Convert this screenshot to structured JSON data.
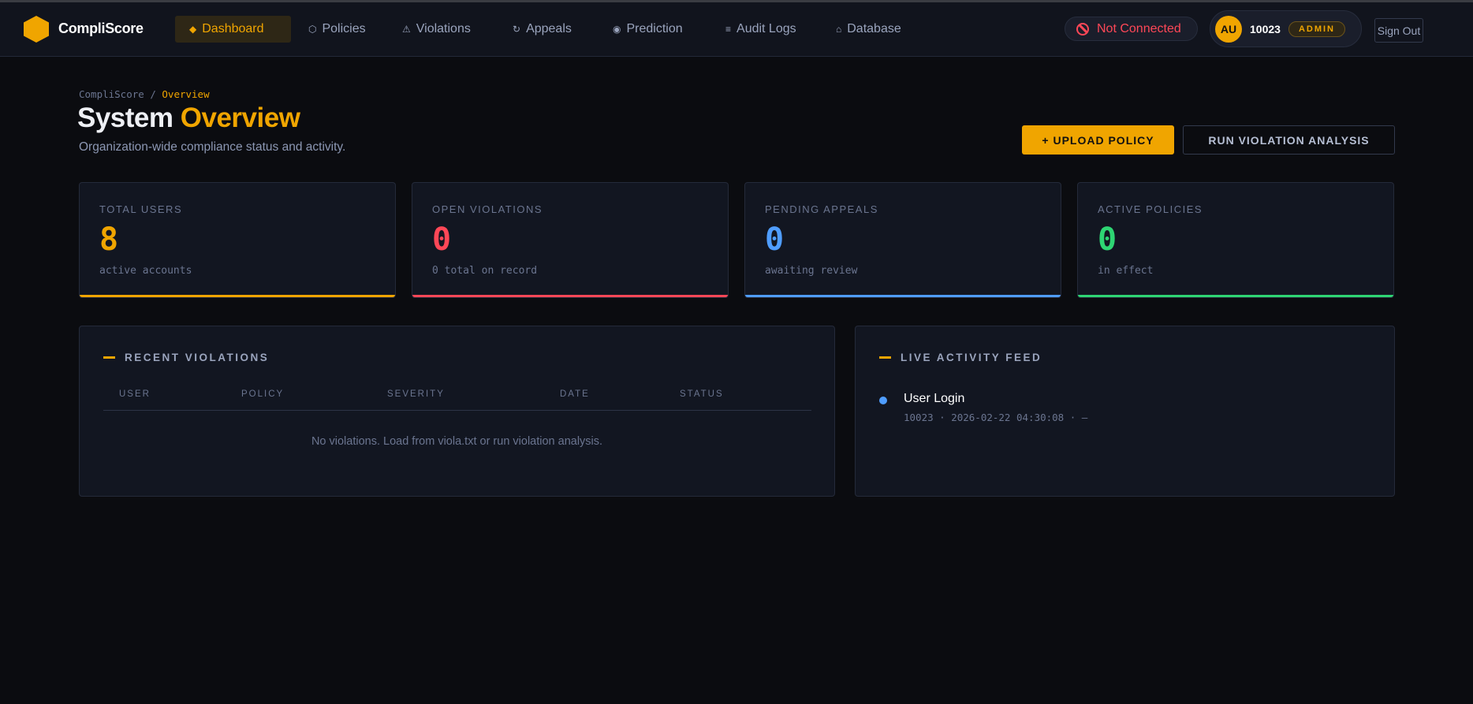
{
  "app": {
    "name": "CompliScore"
  },
  "nav": {
    "items": [
      {
        "label": "Dashboard",
        "icon": "diamond-icon",
        "active": true
      },
      {
        "label": "Policies",
        "icon": "hexagon-icon"
      },
      {
        "label": "Violations",
        "icon": "warning-icon"
      },
      {
        "label": "Appeals",
        "icon": "refresh-icon"
      },
      {
        "label": "Prediction",
        "icon": "target-icon"
      },
      {
        "label": "Audit Logs",
        "icon": "list-icon"
      },
      {
        "label": "Database",
        "icon": "home-icon"
      }
    ]
  },
  "status": {
    "label": "Not Connected",
    "color": "#ff4757"
  },
  "user": {
    "initials": "AU",
    "id": "10023",
    "role": "ADMIN"
  },
  "signout": "Sign Out",
  "breadcrumb": {
    "root": "CompliScore",
    "sep": "/",
    "current": "Overview"
  },
  "page": {
    "title_a": "System",
    "title_b": "Overview",
    "subtitle": "Organization-wide compliance status and activity."
  },
  "actions": {
    "upload": "+ UPLOAD POLICY",
    "run": "RUN VIOLATION ANALYSIS"
  },
  "stats": [
    {
      "label": "TOTAL USERS",
      "value": "8",
      "sub": "active accounts",
      "color": "#f0a500"
    },
    {
      "label": "OPEN VIOLATIONS",
      "value": "0",
      "sub": "0 total on record",
      "color": "#ff4757"
    },
    {
      "label": "PENDING APPEALS",
      "value": "0",
      "sub": "awaiting review",
      "color": "#4f9dff"
    },
    {
      "label": "ACTIVE POLICIES",
      "value": "0",
      "sub": "in effect",
      "color": "#2ed573"
    }
  ],
  "violations": {
    "title": "RECENT VIOLATIONS",
    "columns": [
      "USER",
      "POLICY",
      "SEVERITY",
      "DATE",
      "STATUS"
    ],
    "empty": "No violations. Load from viola.txt or run violation analysis."
  },
  "feed": {
    "title": "LIVE ACTIVITY FEED",
    "items": [
      {
        "title": "User Login",
        "meta": "10023 · 2026-02-22 04:30:08 · —"
      }
    ]
  }
}
